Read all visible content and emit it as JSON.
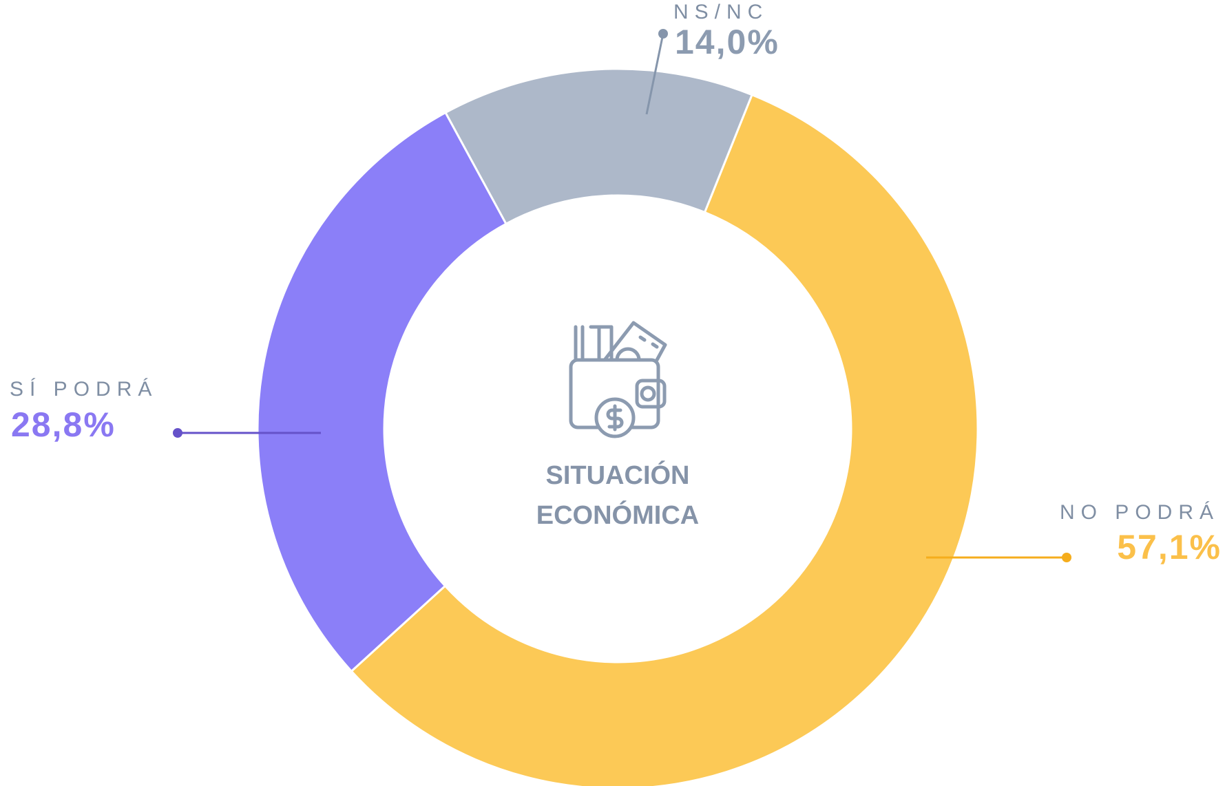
{
  "chart_data": {
    "type": "donut",
    "categories": [
      "NO PODRÁ",
      "SÍ PODRÁ",
      "NS/NC"
    ],
    "values": [
      57.1,
      28.8,
      14.0
    ],
    "value_labels": [
      "57,1%",
      "28,8%",
      "14,0%"
    ],
    "colors": [
      "#fcc956",
      "#8b7ff8",
      "#adb8c9"
    ],
    "label_colors": [
      "#fbc04a",
      "#8a78f2",
      "#8c9bb0"
    ],
    "line_colors": [
      "#f5ad1c",
      "#6552c9",
      "#8595ab"
    ],
    "center_label": [
      "SITUACIÓN",
      "ECONÓMICA"
    ]
  }
}
